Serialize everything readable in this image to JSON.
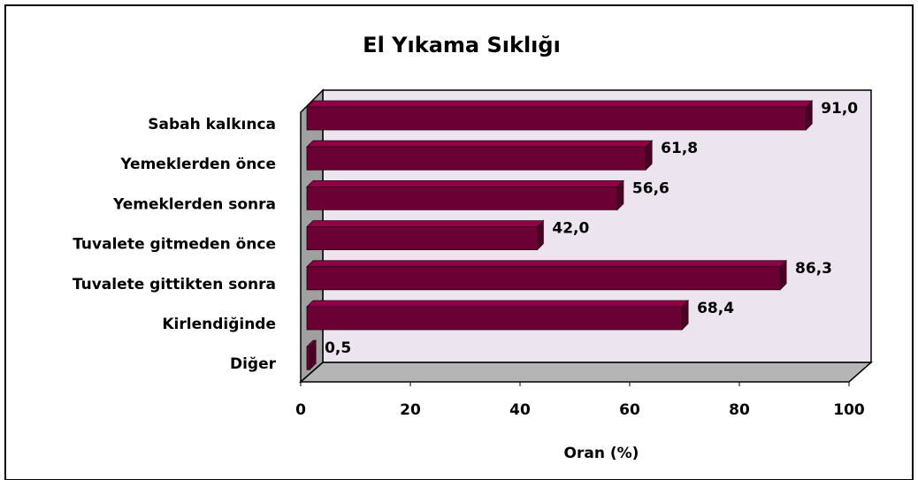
{
  "chart_data": {
    "type": "bar",
    "orientation": "horizontal",
    "title": "El Yıkama Sıklığı",
    "x_label": "Oran (%)",
    "categories": [
      "Sabah kalkınca",
      "Yemeklerden önce",
      "Yemeklerden sonra",
      "Tuvalete gitmeden önce",
      "Tuvalete gittikten sonra",
      "Kirlendiğinde",
      "Diğer"
    ],
    "values": [
      91.0,
      61.8,
      56.6,
      42.0,
      86.3,
      68.4,
      0.5
    ],
    "value_labels": [
      "91,0",
      "61,8",
      "56,6",
      "42,0",
      "86,3",
      "68,4",
      "0,5"
    ],
    "color": "#6b0035",
    "xlim": [
      0,
      100
    ],
    "xticks": [
      0,
      20,
      40,
      60,
      80,
      100
    ]
  }
}
